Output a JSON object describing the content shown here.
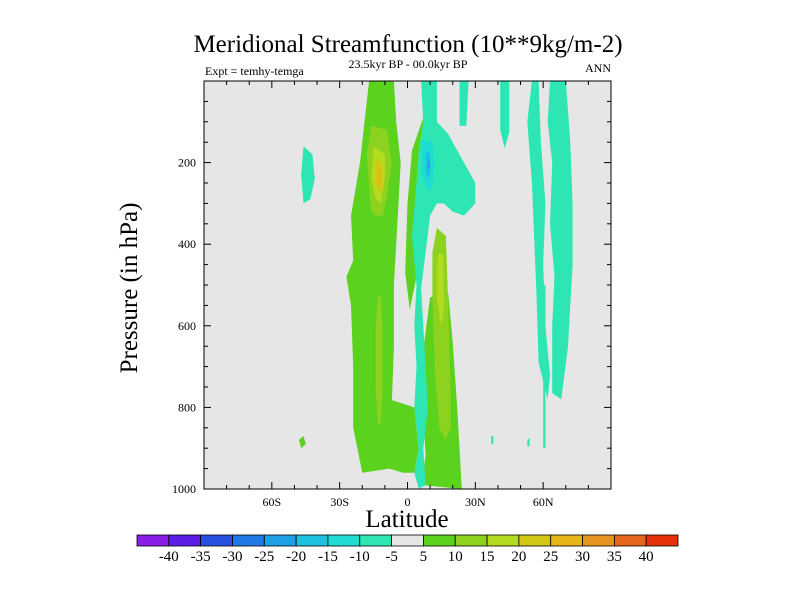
{
  "chart_data": {
    "type": "heatmap",
    "title": "Meridional Streamfunction (10**9kg/m-2)",
    "subtitle": "23.5kyr BP - 00.0kyr BP",
    "left_label": "Expt = temhy-temga",
    "right_label": "ANN",
    "xlabel": "Latitude",
    "ylabel": "Pressure (in hPa)",
    "xlim": [
      -90,
      90
    ],
    "ylim": [
      1000,
      0
    ],
    "x_ticks": [
      {
        "value": -60,
        "label": "60S"
      },
      {
        "value": -30,
        "label": "30S"
      },
      {
        "value": 0,
        "label": "0"
      },
      {
        "value": 30,
        "label": "30N"
      },
      {
        "value": 60,
        "label": "60N"
      }
    ],
    "y_ticks": [
      {
        "value": 200,
        "label": "200"
      },
      {
        "value": 400,
        "label": "400"
      },
      {
        "value": 600,
        "label": "600"
      },
      {
        "value": 800,
        "label": "800"
      },
      {
        "value": 1000,
        "label": "1000"
      }
    ],
    "background_color": "#e6e6e6",
    "colorbar": {
      "levels": [
        "-40",
        "-35",
        "-30",
        "-25",
        "-20",
        "-15",
        "-10",
        "-5",
        "5",
        "10",
        "15",
        "20",
        "25",
        "30",
        "35",
        "40"
      ],
      "colors": [
        "#8a1ee6",
        "#5a1ee6",
        "#2a50e0",
        "#1e78e6",
        "#1ea0e6",
        "#1ec0e0",
        "#1edcd2",
        "#2ee6b4",
        "#e6e6e6",
        "#5ad21e",
        "#8cd21e",
        "#b4dc1e",
        "#d2c814",
        "#e6b414",
        "#e6961e",
        "#e6641e",
        "#e6320a"
      ]
    },
    "contours": [
      {
        "name": "green-main-left",
        "value": 7,
        "points": [
          [
            -17,
            0
          ],
          [
            -6,
            0
          ],
          [
            -5,
            100
          ],
          [
            -3,
            200
          ],
          [
            -4,
            300
          ],
          [
            -5,
            400
          ],
          [
            -6,
            500
          ],
          [
            -6,
            650
          ],
          [
            -7,
            800
          ],
          [
            -8,
            950
          ],
          [
            -20,
            960
          ],
          [
            -24,
            850
          ],
          [
            -24,
            700
          ],
          [
            -25,
            550
          ],
          [
            -27,
            480
          ],
          [
            -24,
            440
          ],
          [
            -25,
            330
          ],
          [
            -21,
            200
          ],
          [
            -19,
            100
          ]
        ]
      },
      {
        "name": "green-lower-band",
        "value": 7,
        "points": [
          [
            -8,
            780
          ],
          [
            3,
            800
          ],
          [
            5,
            900
          ],
          [
            3,
            960
          ],
          [
            -2,
            960
          ],
          [
            -8,
            950
          ]
        ]
      },
      {
        "name": "green-lower-nh",
        "value": 7,
        "points": [
          [
            10,
            530
          ],
          [
            18,
            520
          ],
          [
            20,
            640
          ],
          [
            22,
            800
          ],
          [
            24,
            1000
          ],
          [
            6,
            990
          ],
          [
            8,
            920
          ],
          [
            6,
            700
          ]
        ]
      },
      {
        "name": "green-bridge-nh",
        "value": 7,
        "points": [
          [
            2,
            170
          ],
          [
            7,
            90
          ],
          [
            11,
            110
          ],
          [
            11,
            250
          ],
          [
            8,
            380
          ],
          [
            4,
            480
          ],
          [
            1,
            560
          ],
          [
            -1,
            470
          ],
          [
            0,
            300
          ]
        ]
      },
      {
        "name": "green-west-dot",
        "value": 7,
        "points": [
          [
            -48,
            880
          ],
          [
            -46,
            870
          ],
          [
            -45,
            890
          ],
          [
            -47,
            900
          ]
        ]
      },
      {
        "name": "yellow-upper-ring",
        "value": 12,
        "points": [
          [
            -16,
            110
          ],
          [
            -9,
            120
          ],
          [
            -7,
            200
          ],
          [
            -9,
            280
          ],
          [
            -11,
            330
          ],
          [
            -14,
            330
          ],
          [
            -16,
            320
          ],
          [
            -17,
            260
          ],
          [
            -18,
            180
          ]
        ]
      },
      {
        "name": "yellow-lower-left",
        "value": 12,
        "points": [
          [
            -12,
            520
          ],
          [
            -11,
            610
          ],
          [
            -11,
            760
          ],
          [
            -12,
            840
          ],
          [
            -13,
            840
          ],
          [
            -14,
            760
          ],
          [
            -14,
            600
          ],
          [
            -13,
            530
          ]
        ]
      },
      {
        "name": "yellow-lower-nh",
        "value": 12,
        "points": [
          [
            13,
            360
          ],
          [
            17,
            380
          ],
          [
            18,
            550
          ],
          [
            19,
            750
          ],
          [
            19,
            850
          ],
          [
            17,
            880
          ],
          [
            14,
            850
          ],
          [
            12,
            700
          ],
          [
            11,
            520
          ],
          [
            11,
            420
          ]
        ]
      },
      {
        "name": "gold-upper",
        "value": 18,
        "points": [
          [
            -15,
            160
          ],
          [
            -10,
            180
          ],
          [
            -10,
            240
          ],
          [
            -12,
            300
          ],
          [
            -14,
            290
          ],
          [
            -16,
            240
          ]
        ]
      },
      {
        "name": "gold-lower-nh",
        "value": 18,
        "points": [
          [
            14,
            420
          ],
          [
            16,
            430
          ],
          [
            16,
            560
          ],
          [
            15,
            600
          ],
          [
            13,
            540
          ],
          [
            13,
            450
          ]
        ]
      },
      {
        "name": "orange-core",
        "value": 23,
        "points": [
          [
            -14,
            190
          ],
          [
            -11,
            205
          ],
          [
            -11,
            260
          ],
          [
            -13,
            280
          ],
          [
            -14,
            245
          ]
        ]
      },
      {
        "name": "red-core",
        "value": 28,
        "points": [
          [
            -13,
            215
          ],
          [
            -12,
            218
          ],
          [
            -12,
            250
          ],
          [
            -13,
            255
          ]
        ]
      },
      {
        "name": "cyan-neg-tropics",
        "value": -7,
        "points": [
          [
            6,
            0
          ],
          [
            13,
            0
          ],
          [
            13,
            100
          ],
          [
            18,
            130
          ],
          [
            22,
            170
          ],
          [
            26,
            210
          ],
          [
            30,
            250
          ],
          [
            30,
            300
          ],
          [
            25,
            330
          ],
          [
            20,
            320
          ],
          [
            16,
            300
          ],
          [
            13,
            300
          ],
          [
            10,
            330
          ],
          [
            8,
            420
          ],
          [
            6,
            510
          ],
          [
            7,
            600
          ],
          [
            8,
            700
          ],
          [
            9,
            800
          ],
          [
            7,
            900
          ],
          [
            8,
            990
          ],
          [
            5,
            1000
          ],
          [
            3,
            960
          ],
          [
            5,
            900
          ],
          [
            3,
            800
          ],
          [
            4,
            700
          ],
          [
            3,
            600
          ],
          [
            4,
            500
          ],
          [
            2,
            380
          ],
          [
            4,
            250
          ],
          [
            5,
            170
          ],
          [
            7,
            100
          ]
        ]
      },
      {
        "name": "cyan-band-a",
        "value": -7,
        "points": [
          [
            23,
            0
          ],
          [
            27,
            0
          ],
          [
            26,
            110
          ],
          [
            23,
            110
          ]
        ]
      },
      {
        "name": "cyan-band-b",
        "value": -7,
        "points": [
          [
            41,
            0
          ],
          [
            45,
            0
          ],
          [
            45,
            125
          ],
          [
            43,
            165
          ],
          [
            41,
            120
          ]
        ]
      },
      {
        "name": "cyan-column-high",
        "value": -7,
        "points": [
          [
            55,
            0
          ],
          [
            58,
            0
          ],
          [
            59,
            150
          ],
          [
            61,
            300
          ],
          [
            60,
            450
          ],
          [
            61,
            600
          ],
          [
            63,
            720
          ],
          [
            62,
            780
          ],
          [
            58,
            690
          ],
          [
            57,
            520
          ],
          [
            56,
            380
          ],
          [
            55,
            250
          ],
          [
            53,
            100
          ]
        ]
      },
      {
        "name": "cyan-column-east",
        "value": -7,
        "points": [
          [
            63,
            0
          ],
          [
            70,
            0
          ],
          [
            72,
            150
          ],
          [
            73,
            300
          ],
          [
            73,
            450
          ],
          [
            71,
            650
          ],
          [
            68,
            780
          ],
          [
            64,
            765
          ],
          [
            64,
            600
          ],
          [
            65,
            480
          ],
          [
            63,
            350
          ],
          [
            64,
            200
          ],
          [
            62,
            100
          ]
        ]
      },
      {
        "name": "cyan-strip-60n",
        "value": -7,
        "points": [
          [
            60,
            500
          ],
          [
            61,
            500
          ],
          [
            61,
            900
          ],
          [
            60,
            900
          ]
        ]
      },
      {
        "name": "cyan-west-blob",
        "value": -7,
        "points": [
          [
            -46,
            160
          ],
          [
            -42,
            180
          ],
          [
            -41,
            240
          ],
          [
            -43,
            290
          ],
          [
            -46,
            300
          ],
          [
            -47,
            230
          ]
        ]
      },
      {
        "name": "cyan-dot-38n",
        "value": -7,
        "points": [
          [
            37,
            870
          ],
          [
            38,
            870
          ],
          [
            38,
            890
          ],
          [
            37,
            890
          ]
        ]
      },
      {
        "name": "cyan-dot-54n",
        "value": -7,
        "points": [
          [
            53,
            880
          ],
          [
            54,
            875
          ],
          [
            54,
            895
          ],
          [
            53,
            895
          ]
        ]
      },
      {
        "name": "teal-core",
        "value": -13,
        "points": [
          [
            6,
            145
          ],
          [
            11,
            150
          ],
          [
            12,
            200
          ],
          [
            11,
            260
          ],
          [
            9,
            270
          ],
          [
            6,
            225
          ]
        ]
      },
      {
        "name": "blue-core",
        "value": -18,
        "points": [
          [
            8,
            170
          ],
          [
            10,
            180
          ],
          [
            10,
            225
          ],
          [
            9,
            240
          ],
          [
            8,
            220
          ]
        ]
      },
      {
        "name": "dark-blue-dot",
        "value": -23,
        "points": [
          [
            9,
            195
          ],
          [
            10,
            200
          ],
          [
            10,
            215
          ],
          [
            9,
            215
          ]
        ]
      }
    ]
  }
}
